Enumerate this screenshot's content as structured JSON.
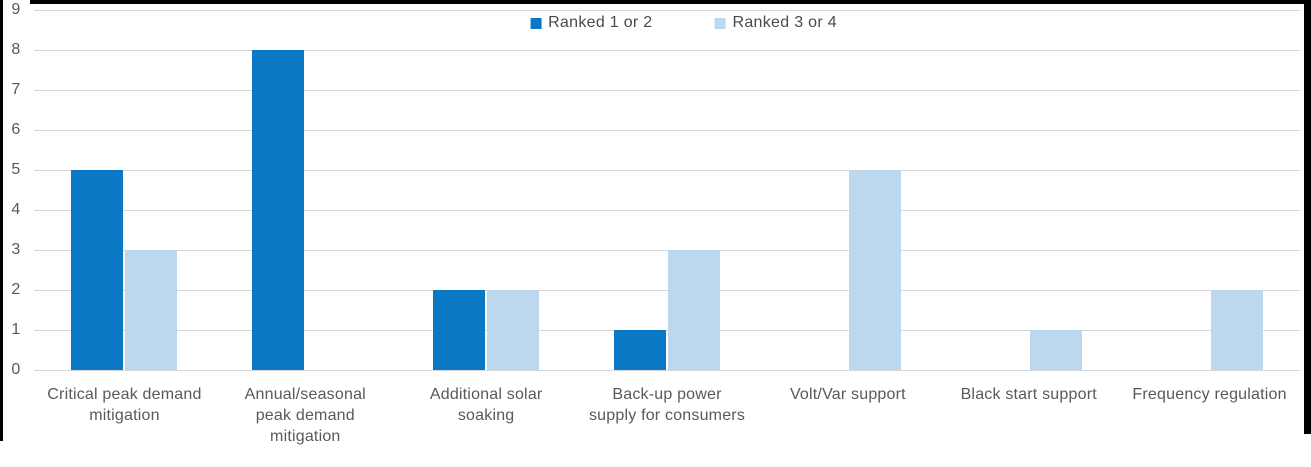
{
  "chart_data": {
    "type": "bar",
    "title": "",
    "categories": [
      "Critical peak demand mitigation",
      "Annual/seasonal peak demand mitigation",
      "Additional solar soaking",
      "Back-up power supply for consumers",
      "Volt/Var support",
      "Black start support",
      "Frequency regulation"
    ],
    "category_lines": [
      [
        "Critical peak demand",
        "mitigation"
      ],
      [
        "Annual/seasonal",
        "peak demand",
        "mitigation"
      ],
      [
        "Additional solar",
        "soaking"
      ],
      [
        "Back-up power",
        "supply for consumers"
      ],
      [
        "Volt/Var support"
      ],
      [
        "Black start support"
      ],
      [
        "Frequency regulation"
      ]
    ],
    "series": [
      {
        "name": "Ranked 1 or 2",
        "color": "#0a78c4",
        "values": [
          5,
          8,
          2,
          1,
          0,
          0,
          0
        ]
      },
      {
        "name": "Ranked 3 or 4",
        "color": "#bdd7ee",
        "values": [
          3,
          0,
          2,
          3,
          5,
          1,
          2
        ]
      }
    ],
    "ylim": [
      0,
      9
    ],
    "yticks": [
      9,
      8,
      7,
      6,
      5,
      4,
      3,
      2,
      1,
      0
    ],
    "grid": true,
    "legend_position": "top-center",
    "xlabel": "",
    "ylabel": ""
  },
  "style": {
    "background": "#ffffff",
    "frame_color": "#000000",
    "gridline_color": "#d6d6d6",
    "axis_text_color": "#595959",
    "legend_text_color": "#4a4a4a"
  }
}
